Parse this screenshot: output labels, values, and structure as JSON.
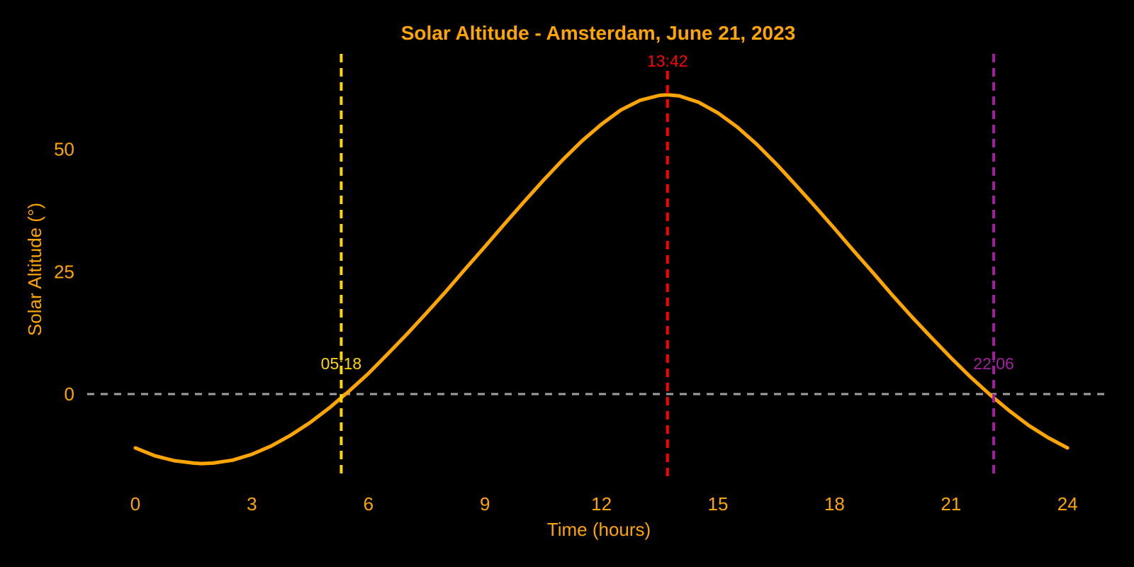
{
  "chart_data": {
    "type": "line",
    "title": "Solar Altitude - Amsterdam, June 21, 2023",
    "xlabel": "Time (hours)",
    "ylabel": "Solar Altitude (°)",
    "background_color": "#000000",
    "text_color": "#FFA500",
    "grid": false,
    "legend": "none",
    "x_ticks": [
      0,
      3,
      6,
      9,
      12,
      15,
      18,
      21,
      24
    ],
    "y_ticks": [
      0,
      25,
      50
    ],
    "xlim": [
      -1.25,
      25.1
    ],
    "ylim": [
      -17.4,
      69.5
    ],
    "series": [
      {
        "name": "solar-altitude",
        "color": "#FFA500",
        "x": [
          0,
          0.5,
          1,
          1.5,
          1.7,
          2,
          2.5,
          3,
          3.5,
          4,
          4.5,
          5,
          5.5,
          6,
          6.5,
          7,
          7.5,
          8,
          8.5,
          9,
          9.5,
          10,
          10.5,
          11,
          11.5,
          12,
          12.5,
          13,
          13.5,
          13.7,
          14,
          14.5,
          15,
          15.5,
          16,
          16.5,
          17,
          17.5,
          18,
          18.5,
          19,
          19.5,
          20,
          20.5,
          21,
          21.5,
          22,
          22.5,
          23,
          23.5,
          24
        ],
        "y": [
          -11.0,
          -12.6,
          -13.6,
          -14.1,
          -14.2,
          -14.1,
          -13.5,
          -12.3,
          -10.6,
          -8.4,
          -5.8,
          -2.8,
          0.6,
          4.2,
          8.2,
          12.3,
          16.6,
          21.0,
          25.6,
          30.1,
          34.7,
          39.2,
          43.6,
          47.8,
          51.7,
          55.1,
          58.0,
          60.0,
          61.0,
          61.1,
          60.9,
          59.6,
          57.4,
          54.5,
          51.0,
          47.0,
          42.7,
          38.3,
          33.8,
          29.2,
          24.7,
          20.1,
          15.7,
          11.5,
          7.4,
          3.5,
          -0.1,
          -3.4,
          -6.4,
          -8.9,
          -11.0
        ]
      }
    ],
    "horizon_line": {
      "y": 0,
      "color": "#A0A0A0",
      "style": "dashed"
    },
    "events": [
      {
        "name": "sunrise",
        "time_hours": 5.3,
        "label": "05:18",
        "color": "#FFD700",
        "label_pos": "horizon"
      },
      {
        "name": "solar-noon",
        "time_hours": 13.7,
        "label": "13:42",
        "color": "#FF0000",
        "label_pos": "top"
      },
      {
        "name": "sunset",
        "time_hours": 22.1,
        "label": "22:06",
        "color": "#A020A0",
        "label_pos": "horizon"
      }
    ]
  }
}
